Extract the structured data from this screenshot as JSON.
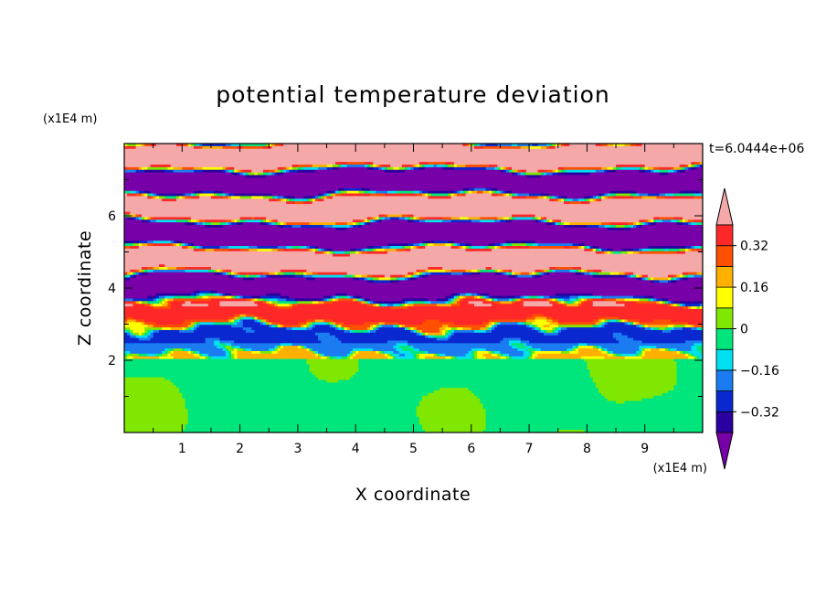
{
  "chart_data": {
    "type": "heatmap",
    "title": "potential temperature deviation",
    "xlabel": "X coordinate",
    "ylabel": "Z coordinate",
    "x_unit": "(x1E4 m)",
    "y_unit": "(x1E4 m)",
    "time_label": "t=6.0444e+06",
    "xlim": [
      0,
      10
    ],
    "ylim": [
      0,
      8
    ],
    "x_ticks": [
      1,
      2,
      3,
      4,
      5,
      6,
      7,
      8,
      9
    ],
    "y_ticks": [
      2,
      4,
      6
    ],
    "x_tick_labels": [
      "1",
      "2",
      "3",
      "4",
      "5",
      "6",
      "7",
      "8",
      "9"
    ],
    "y_tick_labels": [
      "2",
      "4",
      "6"
    ],
    "colorbar": {
      "levels": [
        -0.4,
        -0.32,
        -0.24,
        -0.16,
        -0.08,
        0,
        0.08,
        0.16,
        0.24,
        0.32,
        0.4
      ],
      "colors": [
        "#7800a8",
        "#2a00a0",
        "#0a28d0",
        "#1a7cf0",
        "#00e0f0",
        "#00e67c",
        "#80e800",
        "#ffff00",
        "#ffb000",
        "#ff5000",
        "#ff2828",
        "#f5a8a8"
      ],
      "tick_values": [
        0.32,
        0.16,
        0,
        -0.16,
        -0.32
      ],
      "tick_labels": [
        "0.32",
        "0.16",
        "0",
        "−0.16",
        "−0.32"
      ]
    }
  }
}
